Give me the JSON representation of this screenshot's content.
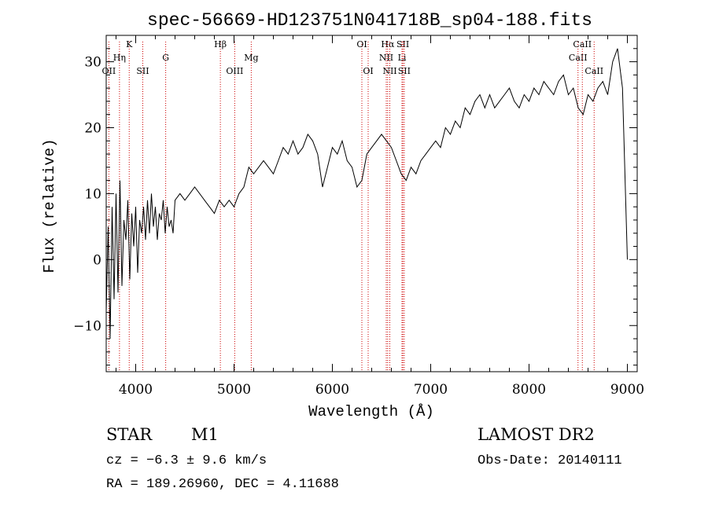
{
  "colors": {
    "background": "#ffffff",
    "foreground": "#000000",
    "line_marker": "#cc0000"
  },
  "chart_data": {
    "type": "line",
    "title": "spec-56669-HD123751N041718B_sp04-188.fits",
    "xlabel": "Wavelength (Å)",
    "ylabel": "Flux (relative)",
    "xlim": [
      3700,
      9100
    ],
    "ylim": [
      -17,
      34
    ],
    "xticks": [
      4000,
      5000,
      6000,
      7000,
      8000,
      9000
    ],
    "yticks": [
      -10,
      0,
      10,
      20,
      30
    ],
    "grid": false,
    "series": [
      {
        "x": [
          3700,
          3720,
          3740,
          3760,
          3780,
          3800,
          3820,
          3840,
          3860,
          3880,
          3900,
          3920,
          3940,
          3960,
          3980,
          4000,
          4020,
          4040,
          4060,
          4080,
          4100,
          4120,
          4140,
          4160,
          4180,
          4200,
          4220,
          4240,
          4260,
          4280,
          4300,
          4320,
          4340,
          4360,
          4380,
          4400,
          4450,
          4500,
          4550,
          4600,
          4650,
          4700,
          4750,
          4800,
          4850,
          4900,
          4950,
          5000,
          5050,
          5100,
          5150,
          5200,
          5250,
          5300,
          5350,
          5400,
          5450,
          5500,
          5550,
          5600,
          5650,
          5700,
          5750,
          5800,
          5850,
          5900,
          5950,
          6000,
          6050,
          6100,
          6150,
          6200,
          6250,
          6300,
          6350,
          6400,
          6450,
          6500,
          6550,
          6600,
          6650,
          6700,
          6750,
          6800,
          6850,
          6900,
          6950,
          7000,
          7050,
          7100,
          7150,
          7200,
          7250,
          7300,
          7350,
          7400,
          7450,
          7500,
          7550,
          7600,
          7650,
          7700,
          7750,
          7800,
          7850,
          7900,
          7950,
          8000,
          8050,
          8100,
          8150,
          8200,
          8250,
          8300,
          8350,
          8400,
          8450,
          8500,
          8550,
          8600,
          8650,
          8700,
          8750,
          8800,
          8850,
          8900,
          8950,
          9000
        ],
        "y": [
          -8,
          5,
          -12,
          8,
          -6,
          10,
          -5,
          12,
          -4,
          6,
          3,
          9,
          -3,
          7,
          2,
          8,
          -2,
          6,
          4,
          8,
          3,
          9,
          4,
          10,
          5,
          8,
          3,
          7,
          6,
          9,
          4,
          8,
          5,
          6,
          4,
          9,
          10,
          9,
          10,
          11,
          10,
          9,
          8,
          7,
          9,
          8,
          9,
          8,
          10,
          11,
          14,
          13,
          14,
          15,
          14,
          13,
          15,
          17,
          16,
          18,
          16,
          17,
          19,
          18,
          16,
          11,
          14,
          17,
          16,
          18,
          15,
          14,
          11,
          12,
          16,
          17,
          18,
          19,
          18,
          17,
          15,
          13,
          12,
          14,
          13,
          15,
          16,
          17,
          18,
          17,
          20,
          19,
          21,
          20,
          23,
          22,
          24,
          25,
          23,
          25,
          23,
          24,
          25,
          26,
          24,
          23,
          25,
          24,
          26,
          25,
          27,
          26,
          25,
          27,
          28,
          25,
          26,
          23,
          22,
          25,
          24,
          26,
          27,
          25,
          30,
          32,
          26,
          0
        ]
      }
    ],
    "line_markers": [
      {
        "label": "OII",
        "x": 3727,
        "row": 3
      },
      {
        "label": "Hη",
        "x": 3835,
        "row": 2
      },
      {
        "label": "K",
        "x": 3934,
        "row": 1
      },
      {
        "label": "SII",
        "x": 4072,
        "row": 3
      },
      {
        "label": "G",
        "x": 4305,
        "row": 2
      },
      {
        "label": "Hβ",
        "x": 4861,
        "row": 1
      },
      {
        "label": "OIII",
        "x": 5007,
        "row": 3
      },
      {
        "label": "Mg",
        "x": 5175,
        "row": 2
      },
      {
        "label": "OI",
        "x": 6300,
        "row": 1
      },
      {
        "label": "OI",
        "x": 6364,
        "row": 3
      },
      {
        "label": "Hα",
        "x": 6563,
        "row": 1
      },
      {
        "label": "NII",
        "x": 6548,
        "row": 2
      },
      {
        "label": "NII",
        "x": 6584,
        "row": 3
      },
      {
        "label": "SII",
        "x": 6717,
        "row": 1
      },
      {
        "label": "Li",
        "x": 6708,
        "row": 2
      },
      {
        "label": "SII",
        "x": 6731,
        "row": 3
      },
      {
        "label": "CaII",
        "x": 8498,
        "row": 2
      },
      {
        "label": "CaII",
        "x": 8542,
        "row": 1
      },
      {
        "label": "CaII",
        "x": 8662,
        "row": 3
      }
    ]
  },
  "info": {
    "object_class": "STAR",
    "subclass": "M1",
    "cz": "cz = −6.3 ± 9.6 km/s",
    "coords": "RA = 189.26960, DEC =    4.11688",
    "survey": "LAMOST DR2",
    "obs_date": "Obs-Date: 20140111"
  }
}
